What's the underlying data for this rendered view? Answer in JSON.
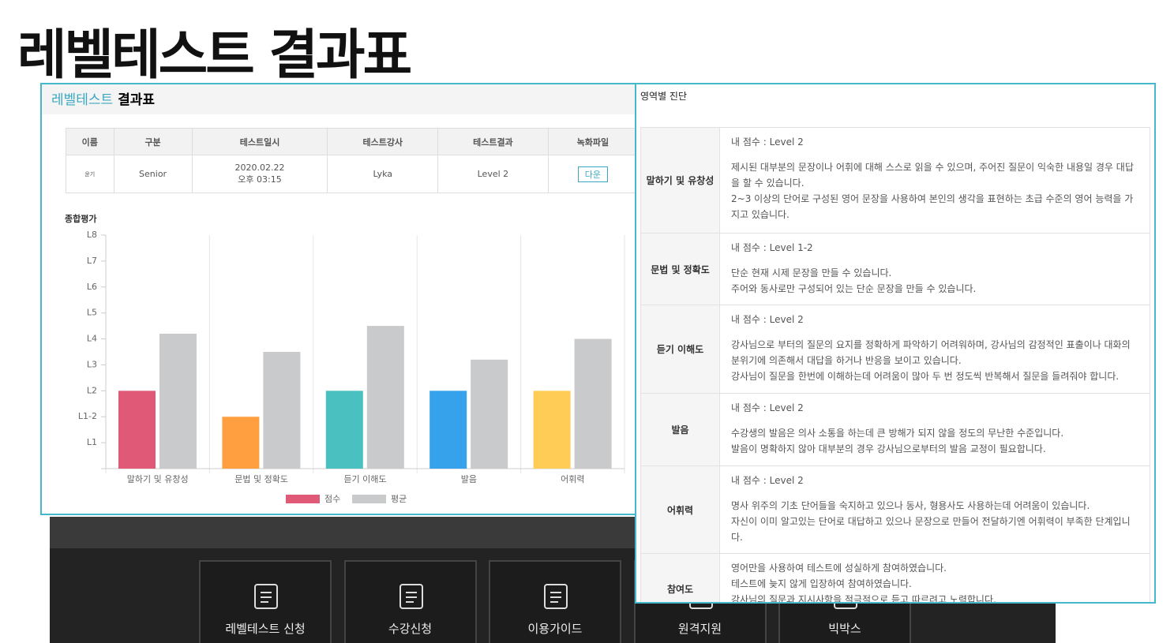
{
  "page_title": "레벨테스트 결과표",
  "result_panel": {
    "title_accent": "레벨테스트",
    "title_rest": "결과표",
    "info_table": {
      "headers": [
        "이름",
        "구분",
        "테스트일시",
        "테스트강사",
        "테스트결과",
        "녹화파일"
      ],
      "row": {
        "name": "윤기",
        "level": "Senior",
        "date": "2020.02.22",
        "time": "오후 03:15",
        "teacher": "Lyka",
        "result": "Level 2",
        "file_button": "다운"
      }
    }
  },
  "chart_data": {
    "type": "bar",
    "title": "종합평가",
    "categories": [
      "말하기 및 유창성",
      "문법 및 정확도",
      "듣기 이해도",
      "발음",
      "어휘력"
    ],
    "series": [
      {
        "name": "점수",
        "color": "#e05a78",
        "colors": [
          "#e05a78",
          "#ff9f40",
          "#4bc0c0",
          "#36a2eb",
          "#ffcd56"
        ],
        "values": [
          3,
          2,
          3,
          3,
          3
        ]
      },
      {
        "name": "평균",
        "color": "#c9cacc",
        "values": [
          5.2,
          4.5,
          5.5,
          4.2,
          5.0
        ]
      }
    ],
    "ylim": [
      0,
      9
    ],
    "yticks": [
      {
        "value": 1,
        "label": "L1"
      },
      {
        "value": 2,
        "label": "L1-2"
      },
      {
        "value": 3,
        "label": "L2"
      },
      {
        "value": 4,
        "label": "L3"
      },
      {
        "value": 5,
        "label": "L4"
      },
      {
        "value": 6,
        "label": "L5"
      },
      {
        "value": 7,
        "label": "L6"
      },
      {
        "value": 8,
        "label": "L7"
      },
      {
        "value": 9,
        "label": "L8"
      }
    ]
  },
  "diagnosis": {
    "title": "영역별 진단",
    "rows": [
      {
        "area": "말하기 및 유창성",
        "score": "내 점수 : Level 2",
        "lines": [
          "제시된 대부분의 문장이나 어휘에 대해 스스로 읽을 수 있으며, 주어진 질문이 익숙한 내용일 경우 대답을 할 수 있습니다.",
          "2~3 이상의 단어로 구성된 영어 문장을 사용하여 본인의 생각을 표현하는 초급 수준의 영어 능력을 가지고 있습니다."
        ]
      },
      {
        "area": "문법 및 정확도",
        "score": "내 점수 : Level 1-2",
        "lines": [
          "단순 현재 시제 문장을 만들 수 있습니다.",
          "주어와 동사로만 구성되어 있는 단순 문장을 만들 수 있습니다."
        ]
      },
      {
        "area": "듣기 이해도",
        "score": "내 점수 : Level 2",
        "lines": [
          "강사님으로 부터의 질문의 요지를 정확하게 파악하기 어려워하며, 강사님의 감정적인 표출이나 대화의 분위기에 의존해서 대답을 하거나 반응을 보이고 있습니다.",
          "강사님이 질문을 한번에 이해하는데 어려움이 많아 두 번 정도씩 반복해서 질문을 들려줘야 합니다."
        ]
      },
      {
        "area": "발음",
        "score": "내 점수 : Level 2",
        "lines": [
          "수강생의 발음은 의사 소통을 하는데 큰 방해가 되지 않을 정도의 무난한 수준입니다.",
          "발음이 명확하지 않아 대부분의 경우 강사님으로부터의 발음 교정이 필요합니다."
        ]
      },
      {
        "area": "어휘력",
        "score": "내 점수 : Level 2",
        "lines": [
          "명사 위주의 기초 단어들을 숙지하고 있으나 동사, 형용사도 사용하는데 어려움이 있습니다.",
          "자신이 이미 알고있는 단어로 대답하고 있으나 문장으로 만들어 전달하기엔 어휘력이 부족한 단계입니다."
        ]
      },
      {
        "area": "참여도",
        "lines": [
          "영어만을 사용하여 테스트에 성실하게 참여하였습니다.",
          "테스트에 늦지 않게 입장하여 참여하였습니다.",
          "강사님의 질문과 지시사항을 적극적으로 듣고 따르려고 노력합니다."
        ]
      }
    ]
  },
  "nav": {
    "items": [
      "레벨테스트 신청",
      "수강신청",
      "이용가이드",
      "원격지원",
      "빅박스"
    ]
  }
}
